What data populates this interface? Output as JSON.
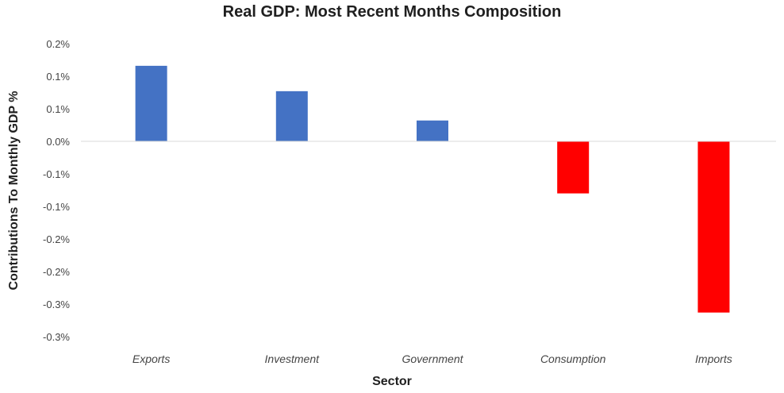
{
  "chart_data": {
    "type": "bar",
    "title": "Real GDP: Most Recent Months Composition",
    "xlabel": "Sector",
    "ylabel": "Contributions To Monthly GDP %",
    "categories": [
      "Exports",
      "Investment",
      "Government",
      "Consumption",
      "Imports"
    ],
    "values": [
      0.116,
      0.077,
      0.032,
      -0.08,
      -0.263
    ],
    "y_tick_labels": [
      "0.2%",
      "0.1%",
      "0.1%",
      "0.0%",
      "-0.1%",
      "-0.1%",
      "-0.2%",
      "-0.2%",
      "-0.3%",
      "-0.3%"
    ],
    "ylim": [
      -0.3,
      0.15
    ],
    "grid": false,
    "legend": "none",
    "colors": {
      "positive": "#4472c4",
      "negative": "#ff0000"
    }
  }
}
